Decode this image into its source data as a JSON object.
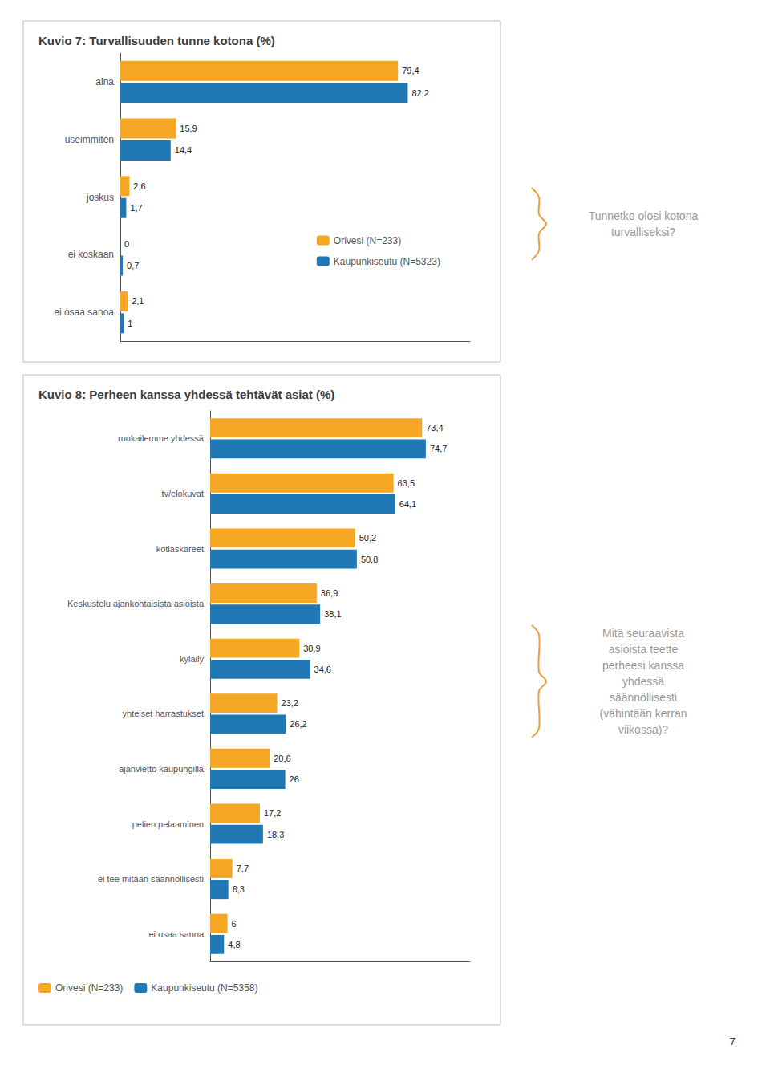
{
  "chart_data": [
    {
      "type": "bar",
      "orientation": "horizontal",
      "title": "Kuvio 7: Turvallisuuden tunne kotona (%)",
      "categories": [
        "aina",
        "useimmiten",
        "joskus",
        "ei koskaan",
        "ei osaa sanoa"
      ],
      "series": [
        {
          "name": "Orivesi (N=233)",
          "color": "#F5A623",
          "values": [
            79.4,
            15.9,
            2.6,
            0,
            2.1
          ],
          "value_labels": [
            "79,4",
            "15,9",
            "2,6",
            "0",
            "2,1"
          ]
        },
        {
          "name": "Kaupunkiseutu (N=5323)",
          "color": "#1F77B4",
          "values": [
            82.2,
            14.4,
            1.7,
            0.7,
            1.0
          ],
          "value_labels": [
            "82,2",
            "14,4",
            "1,7",
            "0,7",
            "1"
          ]
        }
      ],
      "xlim": [
        0,
        100
      ],
      "grid": false,
      "legend": "lower right",
      "data_labels": true,
      "tick_labels": "y",
      "annotations": [
        "Tunnetko olosi kotona\nturvalliseksi?"
      ]
    },
    {
      "type": "bar",
      "orientation": "horizontal",
      "title": "Kuvio 8: Perheen kanssa yhdessä tehtävät asiat (%)",
      "categories": [
        "ruokailemme yhdessä",
        "tv/elokuvat",
        "kotiaskareet",
        "Keskustelu ajankohtaisista asioista",
        "kyläily",
        "yhteiset harrastukset",
        "ajanvietto kaupungilla",
        "pelien pelaaminen",
        "ei tee mitään säännöllisesti",
        "ei osaa sanoa"
      ],
      "series": [
        {
          "name": "Orivesi (N=233)",
          "color": "#F5A623",
          "values": [
            73.4,
            63.5,
            50.2,
            36.9,
            30.9,
            23.2,
            20.6,
            17.2,
            7.7,
            6.0
          ],
          "value_labels": [
            "73,4",
            "63,5",
            "50,2",
            "36,9",
            "30,9",
            "23,2",
            "20,6",
            "17,2",
            "7,7",
            "6"
          ]
        },
        {
          "name": "Kaupunkiseutu (N=5358)",
          "color": "#1F77B4",
          "values": [
            74.7,
            64.1,
            50.8,
            38.1,
            34.6,
            26.2,
            26.0,
            18.3,
            6.3,
            4.8
          ],
          "value_labels": [
            "74,7",
            "64,1",
            "50,8",
            "38,1",
            "34,6",
            "26,2",
            "26",
            "18,3",
            "6,3",
            "4,8"
          ]
        }
      ],
      "xlim": [
        0,
        90
      ],
      "grid": false,
      "legend": "bottom",
      "data_labels": true,
      "tick_labels": "y",
      "annotations": [
        "Mitä seuraavista\nasioista teette\nperheesi kanssa\nyhdessä\nsäännöllisesti\n(vähintään kerran\nviikossa)?",
        "7"
      ]
    }
  ]
}
